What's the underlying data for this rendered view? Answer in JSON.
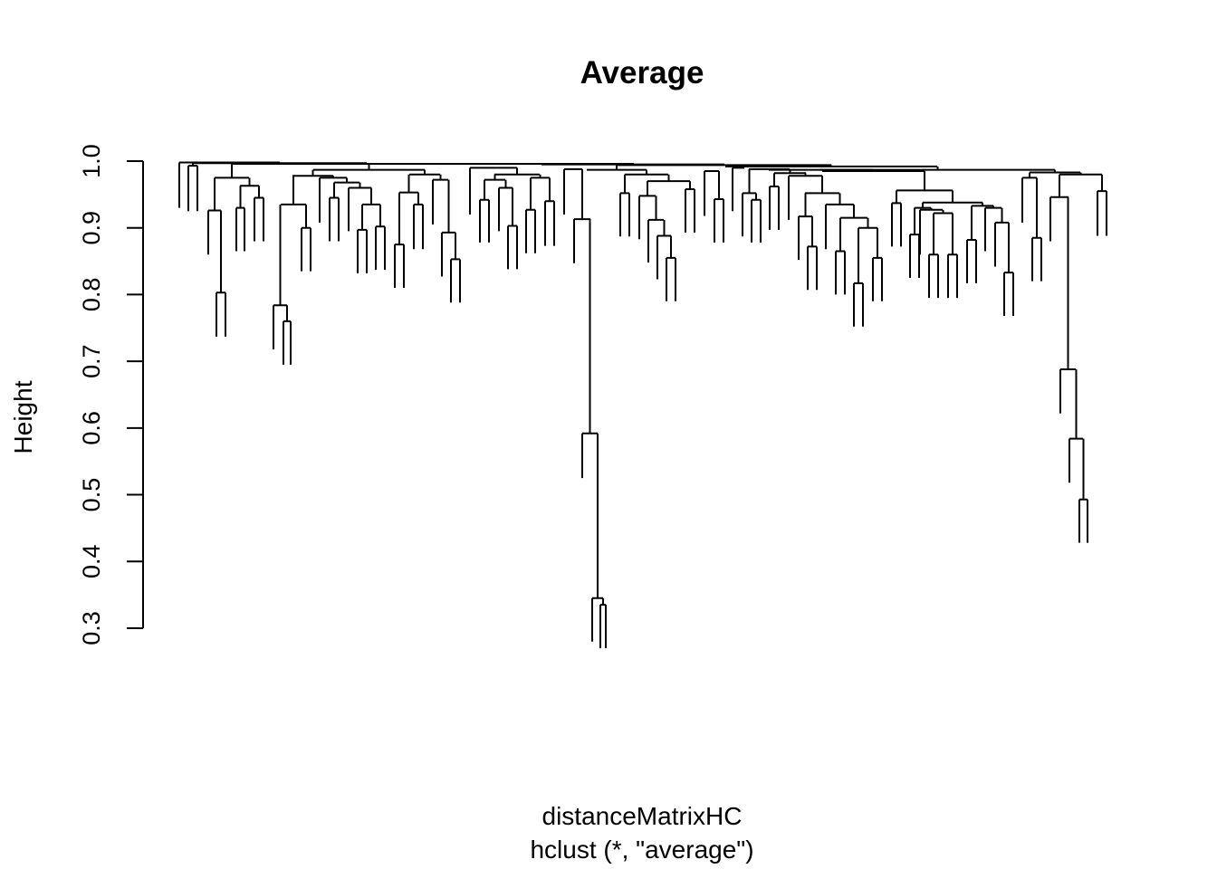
{
  "chart_data": {
    "type": "dendrogram",
    "title": "Average",
    "ylabel": "Height",
    "xlabel": "distanceMatrixHC",
    "sub": "hclust (*, \"average\")",
    "ylim": [
      0.3,
      1.0
    ],
    "yticks": [
      "0.3",
      "0.4",
      "0.5",
      "0.6",
      "0.7",
      "0.8",
      "0.9",
      "1.0"
    ],
    "leaf_labels_shown": false,
    "merges": [
      {
        "x": [
          663,
          669
        ],
        "h": 0.335,
        "tips": [
          0.27,
          0.27
        ]
      },
      {
        "x": [
          654,
          666
        ],
        "h": 0.345,
        "tips": [
          0.28,
          null
        ]
      },
      {
        "x": [
          643,
          660
        ],
        "h": 0.592,
        "tips": [
          0.525,
          null
        ]
      },
      {
        "x": [
          634,
          652
        ],
        "h": 0.913,
        "tips": [
          0.847,
          null
        ]
      },
      {
        "x": [
          1192,
          1201
        ],
        "h": 0.493,
        "tips": [
          0.428,
          0.428
        ]
      },
      {
        "x": [
          1181,
          1196
        ],
        "h": 0.584,
        "tips": [
          0.518,
          null
        ]
      },
      {
        "x": [
          1171,
          1188
        ],
        "h": 0.688,
        "tips": [
          0.622,
          null
        ]
      },
      {
        "x": [
          1160,
          1180
        ],
        "h": 0.946,
        "tips": [
          0.88,
          null
        ]
      },
      {
        "x": [
          313,
          321
        ],
        "h": 0.76,
        "tips": [
          0.695,
          0.695
        ]
      },
      {
        "x": [
          302,
          317
        ],
        "h": 0.784,
        "tips": [
          0.718,
          null
        ]
      },
      {
        "x": [
          333,
          343
        ],
        "h": 0.9,
        "tips": [
          0.835,
          0.835
        ]
      },
      {
        "x": [
          310,
          338
        ],
        "h": 0.935,
        "tips": [
          null,
          null
        ]
      },
      {
        "x": [
          239,
          249
        ],
        "h": 0.803,
        "tips": [
          0.737,
          0.737
        ]
      },
      {
        "x": [
          230,
          244
        ],
        "h": 0.926,
        "tips": [
          0.86,
          null
        ]
      },
      {
        "x": [
          261,
          270
        ],
        "h": 0.93,
        "tips": [
          0.865,
          0.865
        ]
      },
      {
        "x": [
          281,
          291
        ],
        "h": 0.945,
        "tips": [
          0.88,
          0.88
        ]
      },
      {
        "x": [
          265,
          286
        ],
        "h": 0.963,
        "tips": [
          null,
          null
        ]
      },
      {
        "x": [
          237,
          275
        ],
        "h": 0.975,
        "tips": [
          null,
          null
        ]
      },
      {
        "x": [
          395,
          405
        ],
        "h": 0.897,
        "tips": [
          0.832,
          0.832
        ]
      },
      {
        "x": [
          415,
          425
        ],
        "h": 0.902,
        "tips": [
          0.837,
          0.837
        ]
      },
      {
        "x": [
          400,
          420
        ],
        "h": 0.935,
        "tips": [
          null,
          null
        ]
      },
      {
        "x": [
          385,
          410
        ],
        "h": 0.96,
        "tips": [
          0.895,
          null
        ]
      },
      {
        "x": [
          364,
          374
        ],
        "h": 0.945,
        "tips": [
          0.88,
          0.88
        ]
      },
      {
        "x": [
          369,
          397
        ],
        "h": 0.968,
        "tips": [
          null,
          null
        ]
      },
      {
        "x": [
          353,
          383
        ],
        "h": 0.975,
        "tips": [
          0.908,
          null
        ]
      },
      {
        "x": [
          436,
          446
        ],
        "h": 0.875,
        "tips": [
          0.81,
          0.81
        ]
      },
      {
        "x": [
          457,
          467
        ],
        "h": 0.935,
        "tips": [
          0.868,
          0.868
        ]
      },
      {
        "x": [
          441,
          462
        ],
        "h": 0.953,
        "tips": [
          null,
          null
        ]
      },
      {
        "x": [
          498,
          508
        ],
        "h": 0.853,
        "tips": [
          0.788,
          0.788
        ]
      },
      {
        "x": [
          488,
          503
        ],
        "h": 0.893,
        "tips": [
          0.827,
          null
        ]
      },
      {
        "x": [
          478,
          495
        ],
        "h": 0.972,
        "tips": [
          0.905,
          null
        ]
      },
      {
        "x": [
          452,
          486
        ],
        "h": 0.98,
        "tips": [
          null,
          null
        ]
      },
      {
        "x": [
          323,
          368
        ],
        "h": 0.978,
        "tips": [
          null,
          null
        ]
      },
      {
        "x": [
          346,
          469
        ],
        "h": 0.987,
        "tips": [
          null,
          null
        ]
      },
      {
        "x": [
          530,
          540
        ],
        "h": 0.942,
        "tips": [
          0.878,
          0.878
        ]
      },
      {
        "x": [
          561,
          571
        ],
        "h": 0.903,
        "tips": [
          0.838,
          0.838
        ]
      },
      {
        "x": [
          551,
          566
        ],
        "h": 0.96,
        "tips": [
          0.895,
          null
        ]
      },
      {
        "x": [
          535,
          558
        ],
        "h": 0.972,
        "tips": [
          null,
          null
        ]
      },
      {
        "x": [
          581,
          591
        ],
        "h": 0.927,
        "tips": [
          0.862,
          0.862
        ]
      },
      {
        "x": [
          602,
          612
        ],
        "h": 0.94,
        "tips": [
          0.873,
          0.873
        ]
      },
      {
        "x": [
          586,
          607
        ],
        "h": 0.975,
        "tips": [
          null,
          null
        ]
      },
      {
        "x": [
          546,
          596
        ],
        "h": 0.98,
        "tips": [
          null,
          null
        ]
      },
      {
        "x": [
          519,
          571
        ],
        "h": 0.99,
        "tips": [
          0.92,
          null
        ]
      },
      {
        "x": [
          623,
          643
        ],
        "h": 0.988,
        "tips": [
          0.92,
          null
        ]
      },
      {
        "x": [
          736,
          746
        ],
        "h": 0.855,
        "tips": [
          0.79,
          0.79
        ]
      },
      {
        "x": [
          726,
          741
        ],
        "h": 0.888,
        "tips": [
          0.823,
          null
        ]
      },
      {
        "x": [
          716,
          733
        ],
        "h": 0.912,
        "tips": [
          0.848,
          null
        ]
      },
      {
        "x": [
          706,
          724
        ],
        "h": 0.948,
        "tips": [
          0.883,
          null
        ]
      },
      {
        "x": [
          685,
          695
        ],
        "h": 0.952,
        "tips": [
          0.887,
          0.887
        ]
      },
      {
        "x": [
          757,
          767
        ],
        "h": 0.958,
        "tips": [
          0.893,
          0.893
        ]
      },
      {
        "x": [
          715,
          762
        ],
        "h": 0.97,
        "tips": [
          null,
          null
        ]
      },
      {
        "x": [
          690,
          738
        ],
        "h": 0.98,
        "tips": [
          null,
          null
        ]
      },
      {
        "x": [
          648,
          714
        ],
        "h": 0.987,
        "tips": [
          null,
          null
        ]
      },
      {
        "x": [
          789,
          799
        ],
        "h": 0.943,
        "tips": [
          0.878,
          0.878
        ]
      },
      {
        "x": [
          778,
          794
        ],
        "h": 0.985,
        "tips": [
          0.918,
          null
        ]
      },
      {
        "x": [
          809,
          822
        ],
        "h": 0.99,
        "tips": [
          0.925,
          null
        ]
      },
      {
        "x": [
          830,
          840
        ],
        "h": 0.942,
        "tips": [
          0.878,
          0.878
        ]
      },
      {
        "x": [
          820,
          835
        ],
        "h": 0.952,
        "tips": [
          0.887,
          null
        ]
      },
      {
        "x": [
          850,
          860
        ],
        "h": 0.962,
        "tips": [
          0.897,
          0.897
        ]
      },
      {
        "x": [
          892,
          902
        ],
        "h": 0.872,
        "tips": [
          0.807,
          0.807
        ]
      },
      {
        "x": [
          882,
          897
        ],
        "h": 0.917,
        "tips": [
          0.852,
          null
        ]
      },
      {
        "x": [
          943,
          953
        ],
        "h": 0.817,
        "tips": [
          0.752,
          0.752
        ]
      },
      {
        "x": [
          964,
          974
        ],
        "h": 0.855,
        "tips": [
          0.79,
          0.79
        ]
      },
      {
        "x": [
          948,
          969
        ],
        "h": 0.9,
        "tips": [
          null,
          null
        ]
      },
      {
        "x": [
          923,
          933
        ],
        "h": 0.865,
        "tips": [
          0.8,
          0.8
        ]
      },
      {
        "x": [
          928,
          958
        ],
        "h": 0.915,
        "tips": [
          null,
          null
        ]
      },
      {
        "x": [
          912,
          943
        ],
        "h": 0.935,
        "tips": [
          0.868,
          null
        ]
      },
      {
        "x": [
          889,
          927
        ],
        "h": 0.952,
        "tips": [
          null,
          null
        ]
      },
      {
        "x": [
          871,
          908
        ],
        "h": 0.978,
        "tips": [
          0.912,
          null
        ]
      },
      {
        "x": [
          855,
          890
        ],
        "h": 0.982,
        "tips": [
          null,
          null
        ]
      },
      {
        "x": [
          827,
          872
        ],
        "h": 0.988,
        "tips": [
          null,
          null
        ]
      },
      {
        "x": [
          1026,
          1036
        ],
        "h": 0.86,
        "tips": [
          0.795,
          0.795
        ]
      },
      {
        "x": [
          1047,
          1057
        ],
        "h": 0.86,
        "tips": [
          0.795,
          0.795
        ]
      },
      {
        "x": [
          1031,
          1052
        ],
        "h": 0.922,
        "tips": [
          null,
          null
        ]
      },
      {
        "x": [
          1016,
          1041
        ],
        "h": 0.927,
        "tips": [
          0.86,
          null
        ]
      },
      {
        "x": [
          1005,
          1015
        ],
        "h": 0.89,
        "tips": [
          0.825,
          0.825
        ]
      },
      {
        "x": [
          1010,
          1028
        ],
        "h": 0.93,
        "tips": [
          null,
          null
        ]
      },
      {
        "x": [
          1068,
          1078
        ],
        "h": 0.882,
        "tips": [
          0.817,
          0.817
        ]
      },
      {
        "x": [
          1109,
          1119
        ],
        "h": 0.833,
        "tips": [
          0.768,
          0.768
        ]
      },
      {
        "x": [
          1099,
          1114
        ],
        "h": 0.908,
        "tips": [
          0.842,
          null
        ]
      },
      {
        "x": [
          1088,
          1106
        ],
        "h": 0.93,
        "tips": [
          0.865,
          null
        ]
      },
      {
        "x": [
          1073,
          1097
        ],
        "h": 0.933,
        "tips": [
          null,
          null
        ]
      },
      {
        "x": [
          1019,
          1085
        ],
        "h": 0.938,
        "tips": [
          null,
          null
        ]
      },
      {
        "x": [
          985,
          995
        ],
        "h": 0.937,
        "tips": [
          0.872,
          0.872
        ]
      },
      {
        "x": [
          990,
          1052
        ],
        "h": 0.956,
        "tips": [
          null,
          null
        ]
      },
      {
        "x": [
          908,
          1021
        ],
        "h": 0.985,
        "tips": [
          null,
          null
        ]
      },
      {
        "x": [
          849,
          964
        ],
        "h": 0.987,
        "tips": [
          null,
          null
        ]
      },
      {
        "x": [
          1140,
          1150
        ],
        "h": 0.885,
        "tips": [
          0.82,
          0.82
        ]
      },
      {
        "x": [
          1129,
          1145
        ],
        "h": 0.975,
        "tips": [
          0.908,
          null
        ]
      },
      {
        "x": [
          1212,
          1222
        ],
        "h": 0.955,
        "tips": [
          0.888,
          0.888
        ]
      },
      {
        "x": [
          1170,
          1217
        ],
        "h": 0.98,
        "tips": [
          null,
          null
        ]
      },
      {
        "x": [
          1137,
          1193
        ],
        "h": 0.983,
        "tips": [
          null,
          null
        ]
      },
      {
        "x": [
          906,
          1165
        ],
        "h": 0.987,
        "tips": [
          null,
          null
        ]
      },
      {
        "x": [
          801,
          1035
        ],
        "h": 0.992,
        "tips": [
          null,
          null
        ]
      },
      {
        "x": [
          681,
          918
        ],
        "h": 0.994,
        "tips": [
          null,
          null
        ]
      },
      {
        "x": [
          598,
          800
        ],
        "h": 0.995,
        "tips": [
          null,
          null
        ]
      },
      {
        "x": [
          408,
          700
        ],
        "h": 0.996,
        "tips": [
          null,
          null
        ]
      },
      {
        "x": [
          256,
          554
        ],
        "h": 0.996,
        "tips": [
          null,
          null
        ]
      },
      {
        "x": [
          208,
          218
        ],
        "h": 0.993,
        "tips": [
          0.925,
          0.925
        ]
      },
      {
        "x": [
          213,
          405
        ],
        "h": 0.997,
        "tips": [
          null,
          null
        ]
      },
      {
        "x": [
          198,
          309
        ],
        "h": 0.998,
        "tips": [
          0.93,
          null
        ]
      }
    ]
  }
}
